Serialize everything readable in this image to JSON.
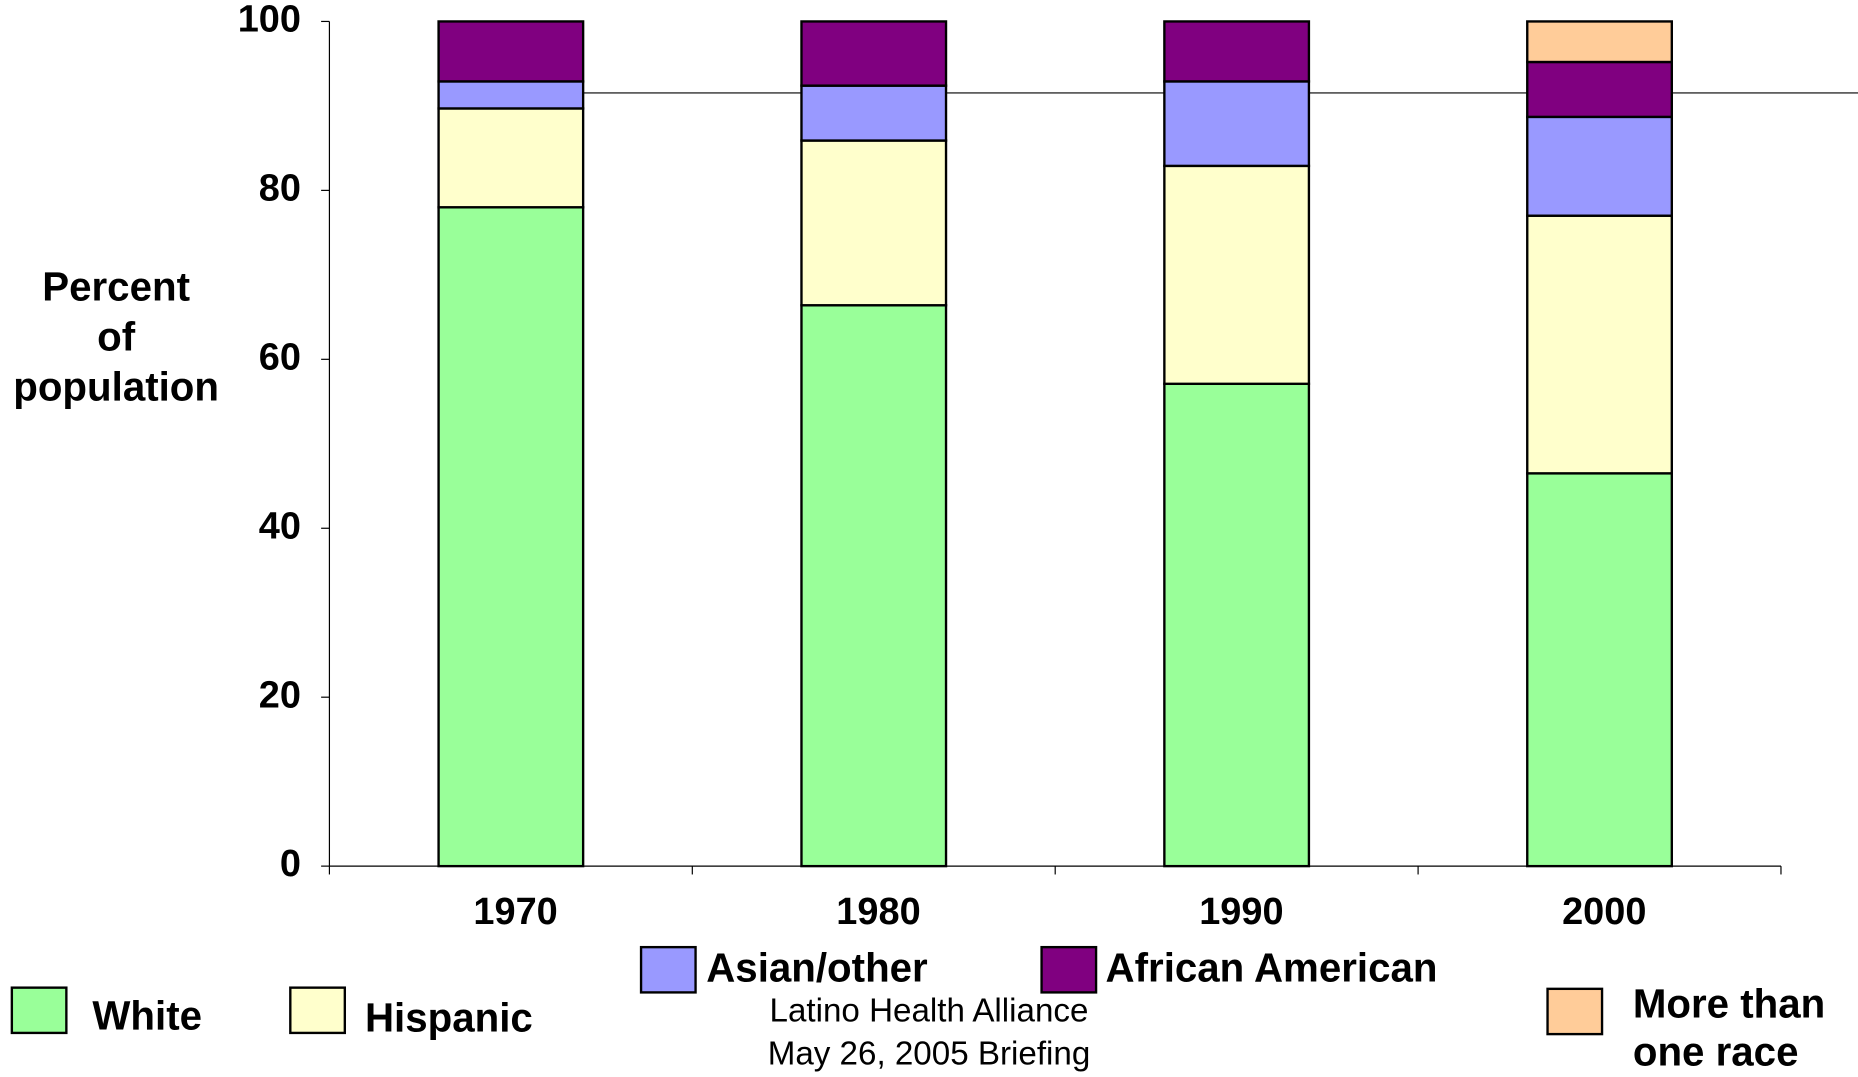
{
  "chart_data": {
    "type": "stacked_bar",
    "y_label": "Percent of population",
    "categories": [
      "1970",
      "1980",
      "1990",
      "2000"
    ],
    "series": [
      {
        "name": "White",
        "color": "#99ff99",
        "values": [
          78.0,
          66.4,
          57.1,
          46.5
        ]
      },
      {
        "name": "Hispanic",
        "color": "#ffffcc",
        "values": [
          11.7,
          19.5,
          25.8,
          30.5
        ]
      },
      {
        "name": "Asian/other",
        "color": "#9999ff",
        "values": [
          3.2,
          6.5,
          10.0,
          11.7
        ]
      },
      {
        "name": "African American",
        "color": "#800080",
        "values": [
          7.1,
          7.6,
          7.1,
          6.5
        ]
      },
      {
        "name": "More than one race",
        "color": "#ffcc99",
        "values": [
          null,
          null,
          null,
          4.8
        ]
      }
    ],
    "ylim": [
      0,
      100
    ],
    "yticks": [
      0,
      20,
      40,
      60,
      80,
      100
    ],
    "annotations": [
      "Latino Health Alliance",
      "May 26, 2005 Briefing"
    ]
  }
}
